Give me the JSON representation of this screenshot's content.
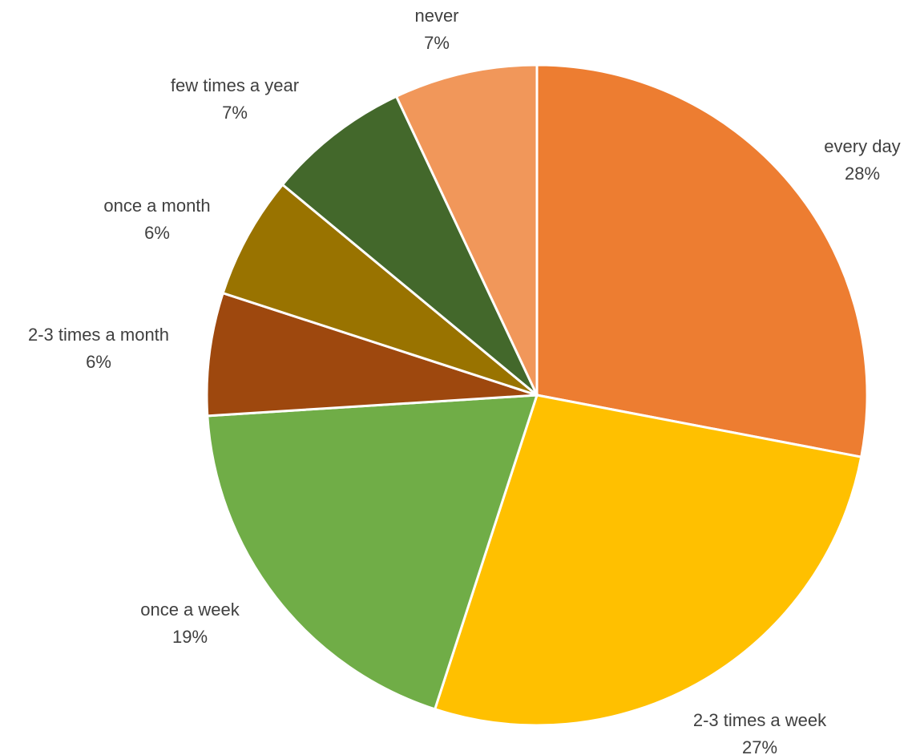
{
  "chart_data": {
    "type": "pie",
    "title": "",
    "start_angle": "12 o'clock",
    "direction": "clockwise",
    "legend": "none",
    "slices": [
      {
        "label": "every day",
        "value": 28,
        "value_label": "28%",
        "color": "#ED7D31"
      },
      {
        "label": "2-3 times a week",
        "value": 27,
        "value_label": "27%",
        "color": "#FFC000"
      },
      {
        "label": "once a week",
        "value": 19,
        "value_label": "19%",
        "color": "#70AD47"
      },
      {
        "label": "2-3 times a month",
        "value": 6,
        "value_label": "6%",
        "color": "#9E480E"
      },
      {
        "label": "once a month",
        "value": 6,
        "value_label": "6%",
        "color": "#997300"
      },
      {
        "label": "few times a year",
        "value": 7,
        "value_label": "7%",
        "color": "#43682B"
      },
      {
        "label": "never",
        "value": 7,
        "value_label": "7%",
        "color": "#F1975A"
      }
    ]
  }
}
